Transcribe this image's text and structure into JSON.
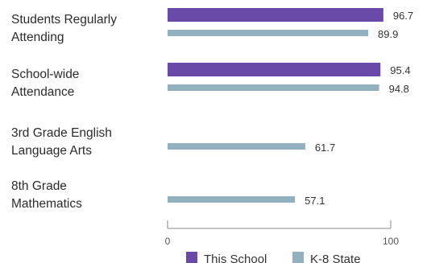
{
  "chart_data": {
    "type": "bar",
    "orientation": "horizontal",
    "categories": [
      [
        "Students Regularly",
        "Attending"
      ],
      [
        "School-wide",
        "Attendance"
      ],
      [
        "3rd Grade English",
        "Language Arts"
      ],
      [
        "8th Grade",
        "Mathematics"
      ]
    ],
    "series": [
      {
        "name": "This School",
        "values": [
          96.7,
          95.4,
          null,
          null
        ],
        "labels": [
          "96.7",
          "95.4",
          "",
          ""
        ],
        "color": "#6a4aa8"
      },
      {
        "name": "K-8 State",
        "values": [
          89.9,
          94.8,
          61.7,
          57.1
        ],
        "labels": [
          "89.9",
          "94.8",
          "61.7",
          "57.1"
        ],
        "color": "#92b0bd"
      }
    ],
    "xlim": [
      0,
      100
    ],
    "x_ticks": [
      0,
      100
    ],
    "x_tick_labels": [
      "0",
      "100"
    ],
    "grid": false,
    "legend_position": "bottom-center",
    "colors": {
      "axis": "#888888"
    }
  }
}
